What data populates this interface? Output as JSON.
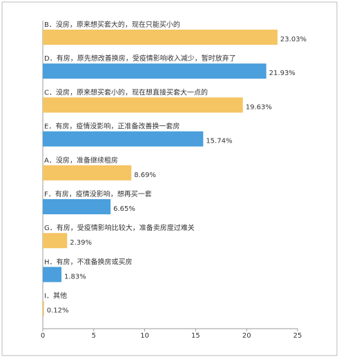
{
  "chart_data": {
    "type": "barh",
    "categories": [
      "B．没房，原来想买套大的，现在只能买小的",
      "D．有房，原先想改善换房，受疫情影响收入减少，暂时放弃了",
      "C．没房，原来想买套小的，现在想直接买套大一点的",
      "E．有房，疫情没影响，正准备改善换一套房",
      "A．没房，准备继续租房",
      "F．有房，疫情没影响，想再买一套",
      "G．有房，受疫情影响比较大，准备卖房度过难关",
      "H．有房，不准备换房或买房",
      "I．其他"
    ],
    "values": [
      23.03,
      21.93,
      19.63,
      15.74,
      8.69,
      6.65,
      2.39,
      1.83,
      0.12
    ],
    "value_labels": [
      "23.03%",
      "21.93%",
      "19.63%",
      "15.74%",
      "8.69%",
      "6.65%",
      "2.39%",
      "1.83%",
      "0.12%"
    ],
    "colors": [
      "#f5c463",
      "#4a9fdc",
      "#f5c463",
      "#4a9fdc",
      "#f5c463",
      "#4a9fdc",
      "#f5c463",
      "#4a9fdc",
      "#f5c463"
    ],
    "xlim": [
      0,
      25
    ],
    "xticks": [
      0,
      5,
      10,
      15,
      20,
      25
    ]
  }
}
